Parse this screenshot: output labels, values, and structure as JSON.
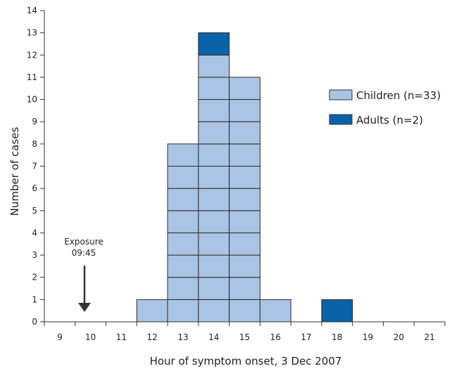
{
  "chart_data": {
    "type": "bar",
    "title": "",
    "xlabel": "Hour of symptom onset, 3 Dec 2007",
    "ylabel": "Number of cases",
    "x_ticks": [
      9,
      10,
      11,
      12,
      13,
      14,
      15,
      16,
      17,
      18,
      19,
      20,
      21
    ],
    "x_range": [
      8.5,
      21.5
    ],
    "ylim": [
      0,
      14
    ],
    "y_ticks": [
      0,
      1,
      2,
      3,
      4,
      5,
      6,
      7,
      8,
      9,
      10,
      11,
      12,
      13,
      14
    ],
    "grid": false,
    "stacked": true,
    "cells_shown_per_case": true,
    "legend_position": "right",
    "series": [
      {
        "name": "Children (n=33)",
        "color": "#a9c4e4",
        "x": [
          12,
          13,
          14,
          15,
          16
        ],
        "values": [
          1,
          8,
          12,
          11,
          1
        ]
      },
      {
        "name": "Adults (n=2)",
        "color": "#0a63a8",
        "x": [
          14,
          18
        ],
        "values": [
          1,
          1
        ]
      }
    ],
    "annotations": [
      {
        "text_line1": "Exposure",
        "text_line2": "09:45",
        "x": 9.75,
        "arrow": "down"
      }
    ]
  }
}
